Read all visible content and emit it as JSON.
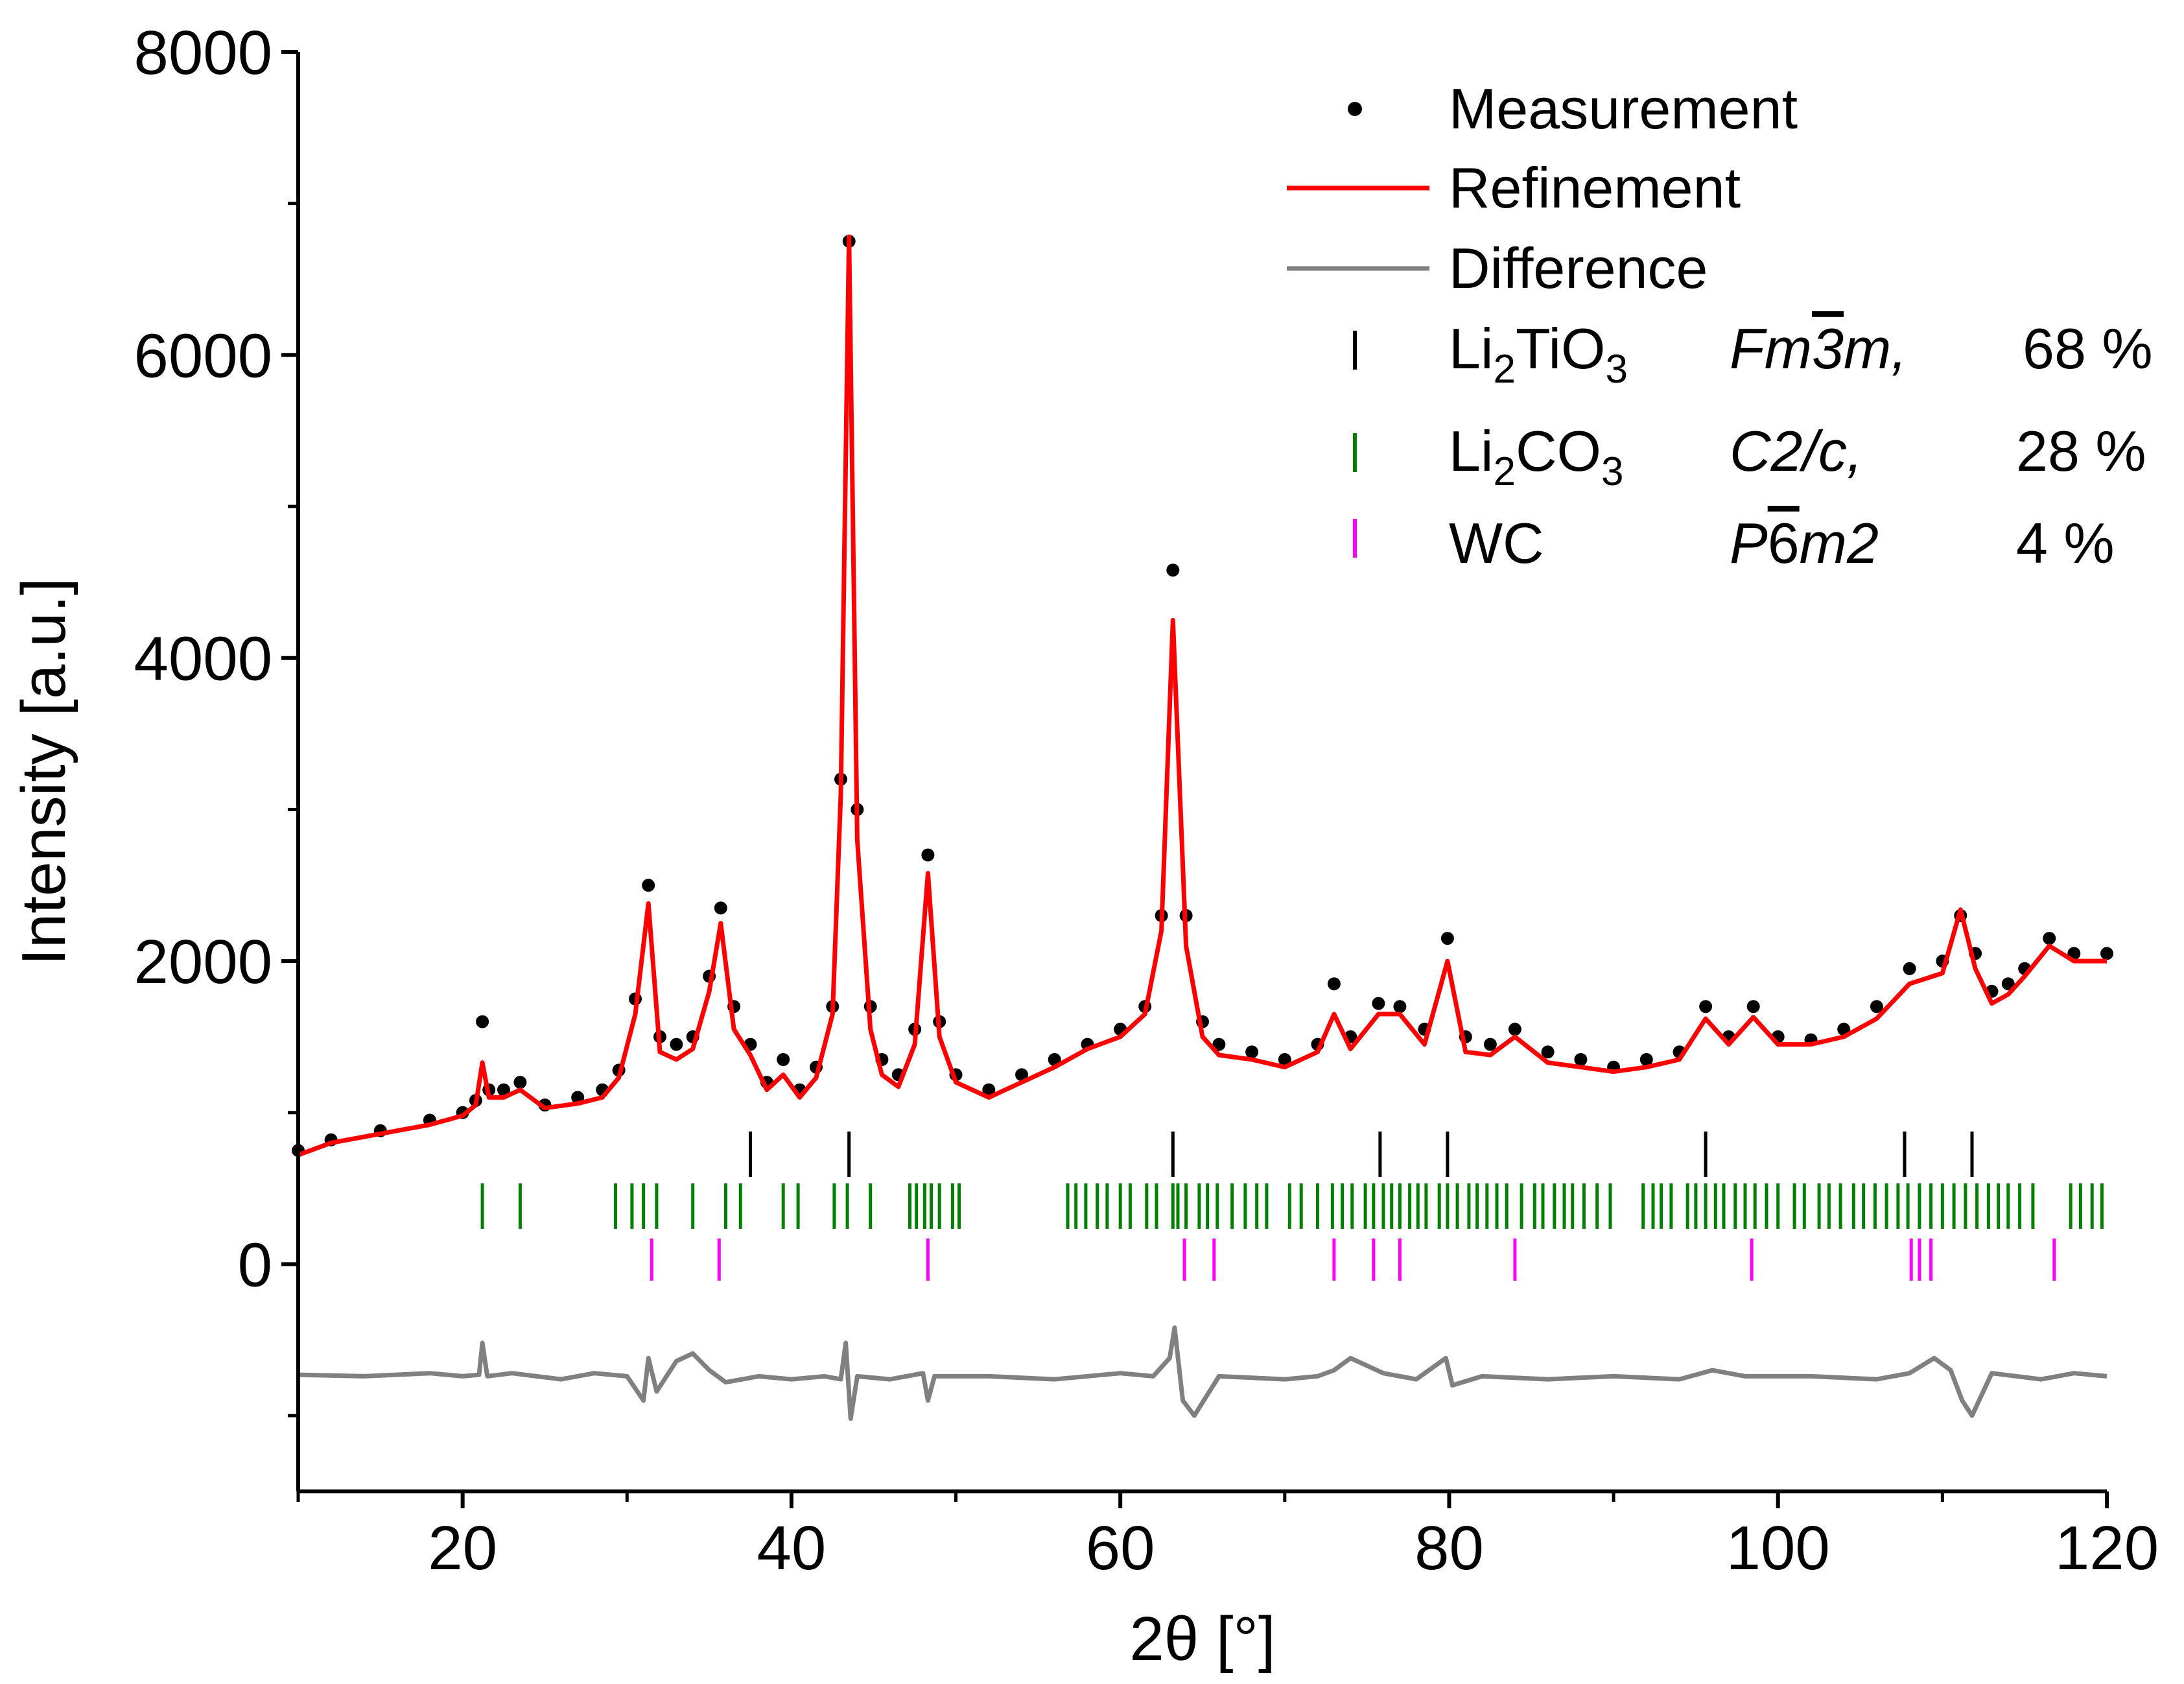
{
  "chart_data": {
    "type": "line",
    "xlabel": "2θ [°]",
    "ylabel": "Intensity [a.u.]",
    "xlim": [
      10,
      120
    ],
    "ylim": [
      -1500,
      8000
    ],
    "x_ticks": [
      20,
      40,
      60,
      80,
      100,
      120
    ],
    "y_ticks": [
      0,
      2000,
      4000,
      6000,
      8000
    ],
    "x_tick_labels": [
      "20",
      "40",
      "60",
      "80",
      "100",
      "120"
    ],
    "y_tick_labels": [
      "0",
      "2000",
      "4000",
      "6000",
      "8000"
    ],
    "colors": {
      "measurement": "#000000",
      "refinement": "#ff0000",
      "difference": "#808080",
      "li2tio3": "#000000",
      "li2co3": "#008000",
      "wc": "#ff00ff"
    },
    "series": [
      {
        "name": "Measurement",
        "style": "points",
        "x": [
          10,
          12,
          15,
          18,
          20,
          20.8,
          21.2,
          21.6,
          22.5,
          23.5,
          25,
          27,
          28.5,
          29.5,
          30.5,
          31.3,
          32,
          33,
          34,
          35,
          35.7,
          36.5,
          37.5,
          38.5,
          39.5,
          40.5,
          41.5,
          42.5,
          43,
          43.5,
          44,
          44.8,
          45.5,
          46.5,
          47.5,
          48.3,
          49,
          50,
          52,
          54,
          56,
          58,
          60,
          61.5,
          62.5,
          63.2,
          64,
          65,
          66,
          68,
          70,
          72,
          73,
          74,
          75.7,
          77,
          78.5,
          79.9,
          81,
          82.5,
          84,
          86,
          88,
          90,
          92,
          94,
          95.6,
          97,
          98.5,
          100,
          102,
          104,
          106,
          108,
          110,
          111.1,
          112,
          113,
          114,
          115,
          116.5,
          118,
          120
        ],
        "y": [
          750,
          820,
          880,
          950,
          1000,
          1080,
          1600,
          1150,
          1150,
          1200,
          1050,
          1100,
          1150,
          1280,
          1750,
          2500,
          1500,
          1450,
          1500,
          1900,
          2350,
          1700,
          1450,
          1200,
          1350,
          1150,
          1300,
          1700,
          3200,
          6750,
          3000,
          1700,
          1350,
          1250,
          1550,
          2700,
          1600,
          1250,
          1150,
          1250,
          1350,
          1450,
          1550,
          1700,
          2300,
          4580,
          2300,
          1600,
          1450,
          1400,
          1350,
          1450,
          1850,
          1500,
          1720,
          1700,
          1550,
          2150,
          1500,
          1450,
          1550,
          1400,
          1350,
          1300,
          1350,
          1400,
          1700,
          1500,
          1700,
          1500,
          1480,
          1550,
          1700,
          1950,
          2000,
          2300,
          2050,
          1800,
          1850,
          1950,
          2150,
          2050,
          2050
        ]
      },
      {
        "name": "Refinement",
        "style": "line",
        "x": [
          10,
          12,
          15,
          18,
          20,
          20.8,
          21.2,
          21.6,
          22.5,
          23.5,
          25,
          27,
          28.5,
          29.5,
          30.5,
          31.3,
          32,
          33,
          34,
          35,
          35.7,
          36.5,
          37.5,
          38.5,
          39.5,
          40.5,
          41.5,
          42.5,
          43,
          43.5,
          44,
          44.8,
          45.5,
          46.5,
          47.5,
          48.3,
          49,
          50,
          52,
          54,
          56,
          58,
          60,
          61.5,
          62.5,
          63.2,
          64,
          65,
          66,
          68,
          70,
          72,
          73,
          74,
          75.7,
          77,
          78.5,
          79.9,
          81,
          82.5,
          84,
          86,
          88,
          90,
          92,
          94,
          95.6,
          97,
          98.5,
          100,
          102,
          104,
          106,
          108,
          110,
          111.1,
          112,
          113,
          114,
          115,
          116.5,
          118,
          120
        ],
        "y": [
          720,
          800,
          860,
          920,
          980,
          1050,
          1330,
          1100,
          1100,
          1150,
          1030,
          1060,
          1100,
          1230,
          1650,
          2380,
          1400,
          1350,
          1420,
          1800,
          2250,
          1550,
          1380,
          1150,
          1250,
          1100,
          1230,
          1650,
          3100,
          6780,
          2800,
          1550,
          1250,
          1170,
          1450,
          2580,
          1500,
          1200,
          1100,
          1200,
          1300,
          1420,
          1500,
          1650,
          2200,
          4250,
          2100,
          1500,
          1380,
          1350,
          1300,
          1400,
          1650,
          1420,
          1650,
          1650,
          1450,
          2000,
          1400,
          1380,
          1500,
          1330,
          1300,
          1270,
          1300,
          1350,
          1620,
          1450,
          1630,
          1450,
          1450,
          1500,
          1620,
          1850,
          1920,
          2340,
          1950,
          1720,
          1780,
          1900,
          2100,
          2000,
          2000
        ]
      },
      {
        "name": "Difference",
        "style": "line",
        "x": [
          10,
          14,
          18,
          20,
          21,
          21.2,
          21.5,
          23,
          26,
          28,
          30,
          31,
          31.3,
          31.8,
          33,
          34,
          35,
          36,
          38,
          40,
          42,
          43,
          43.3,
          43.6,
          44,
          46,
          48,
          48.3,
          48.7,
          52,
          56,
          60,
          62,
          63,
          63.3,
          63.8,
          64.5,
          66,
          70,
          72,
          73,
          74,
          76,
          78,
          79.8,
          80.2,
          82,
          86,
          90,
          94,
          96,
          98,
          102,
          106,
          108,
          109.5,
          110.5,
          111.2,
          111.8,
          113,
          116,
          118,
          120
        ],
        "y": [
          -730,
          -740,
          -720,
          -740,
          -730,
          -520,
          -740,
          -720,
          -760,
          -720,
          -740,
          -900,
          -620,
          -840,
          -640,
          -590,
          -700,
          -780,
          -740,
          -760,
          -740,
          -760,
          -520,
          -1020,
          -740,
          -760,
          -720,
          -900,
          -740,
          -740,
          -760,
          -720,
          -740,
          -620,
          -420,
          -900,
          -1000,
          -740,
          -760,
          -740,
          -700,
          -620,
          -720,
          -760,
          -620,
          -800,
          -740,
          -760,
          -740,
          -760,
          -700,
          -740,
          -740,
          -760,
          -720,
          -620,
          -700,
          -900,
          -1000,
          -720,
          -760,
          -720,
          -740
        ]
      }
    ],
    "reflections": [
      {
        "name": "Li2TiO3",
        "positions": [
          37.5,
          43.5,
          63.2,
          75.8,
          79.9,
          95.6,
          107.7,
          111.8
        ]
      },
      {
        "name": "Li2CO3",
        "positions": [
          21.2,
          23.5,
          29.3,
          30.3,
          31.0,
          31.8,
          34.0,
          36.0,
          36.9,
          39.5,
          40.4,
          42.6,
          43.4,
          44.8,
          47.2,
          47.6,
          48.1,
          48.5,
          49.0,
          49.8,
          50.2,
          56.8,
          57.3,
          57.9,
          58.6,
          59.2,
          60.0,
          60.6,
          61.6,
          62.2,
          63.2,
          63.5,
          64.0,
          64.8,
          65.3,
          65.9,
          66.8,
          67.6,
          68.3,
          68.9,
          70.3,
          71.0,
          72.0,
          72.9,
          73.5,
          74.1,
          74.9,
          75.4,
          76.0,
          76.5,
          77.0,
          77.6,
          78.1,
          78.6,
          79.4,
          79.9,
          80.5,
          81.2,
          81.7,
          82.3,
          82.9,
          83.5,
          84.4,
          85.2,
          85.7,
          86.4,
          87.0,
          87.5,
          88.2,
          89.0,
          89.8,
          91.8,
          92.4,
          92.9,
          93.5,
          94.5,
          95.0,
          95.6,
          96.2,
          96.7,
          97.4,
          98.0,
          98.6,
          99.3,
          100.0,
          101.0,
          101.6,
          102.5,
          103.1,
          103.8,
          104.6,
          105.2,
          105.9,
          106.6,
          107.3,
          107.9,
          108.6,
          109.3,
          110.0,
          110.7,
          111.4,
          112.1,
          112.8,
          113.4,
          114.0,
          114.7,
          115.5,
          117.8,
          118.4,
          119.1,
          119.7
        ]
      },
      {
        "name": "WC",
        "positions": [
          31.5,
          35.6,
          48.3,
          63.9,
          65.7,
          73.0,
          75.4,
          77.0,
          84.0,
          98.4,
          108.1,
          108.6,
          109.3,
          116.8
        ]
      }
    ],
    "legend": {
      "placement": "top-right",
      "measurement": "Measurement",
      "refinement": "Refinement",
      "difference": "Difference",
      "phases": [
        {
          "base": "Li",
          "sub1": "2",
          "mid": "TiO",
          "sub2": "3",
          "group_a": "Fm",
          "group_b": "3",
          "group_c": "m,",
          "fraction": "68 %"
        },
        {
          "base": "Li",
          "sub1": "2",
          "mid": "CO",
          "sub2": "3",
          "group_a": "C2/c,",
          "group_b": "",
          "group_c": "",
          "fraction": "28 %"
        },
        {
          "base": "WC",
          "sub1": "",
          "mid": "",
          "sub2": "",
          "group_a": "P",
          "group_b": "6",
          "group_c": "m2",
          "fraction": "4 %"
        }
      ]
    }
  }
}
